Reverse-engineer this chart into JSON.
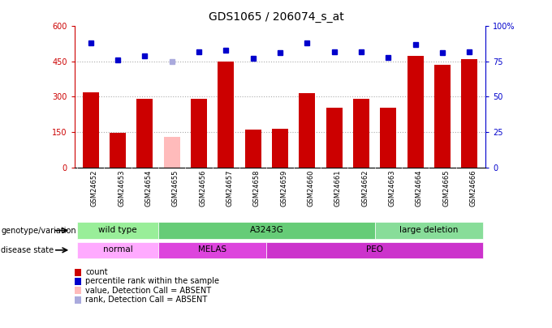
{
  "title": "GDS1065 / 206074_s_at",
  "samples": [
    "GSM24652",
    "GSM24653",
    "GSM24654",
    "GSM24655",
    "GSM24656",
    "GSM24657",
    "GSM24658",
    "GSM24659",
    "GSM24660",
    "GSM24661",
    "GSM24662",
    "GSM24663",
    "GSM24664",
    "GSM24665",
    "GSM24666"
  ],
  "counts": [
    320,
    148,
    292,
    130,
    290,
    450,
    160,
    165,
    315,
    255,
    290,
    255,
    475,
    435,
    460
  ],
  "count_absent": [
    false,
    false,
    false,
    true,
    false,
    false,
    false,
    false,
    false,
    false,
    false,
    false,
    false,
    false,
    false
  ],
  "percentile_ranks": [
    88,
    76,
    79,
    75,
    82,
    83,
    77,
    81,
    88,
    82,
    82,
    78,
    87,
    81,
    82
  ],
  "rank_absent": [
    false,
    false,
    false,
    true,
    false,
    false,
    false,
    false,
    false,
    false,
    false,
    false,
    false,
    false,
    false
  ],
  "bar_color_normal": "#cc0000",
  "bar_color_absent": "#ffbbbb",
  "dot_color_normal": "#0000cc",
  "dot_color_absent": "#aaaadd",
  "ylim_left": [
    0,
    600
  ],
  "ylim_right": [
    0,
    100
  ],
  "yticks_left": [
    0,
    150,
    300,
    450,
    600
  ],
  "yticks_right": [
    0,
    25,
    50,
    75,
    100
  ],
  "ytick_labels_left": [
    "0",
    "150",
    "300",
    "450",
    "600"
  ],
  "ytick_labels_right": [
    "0",
    "25",
    "50",
    "75",
    "100%"
  ],
  "grid_lines": [
    150,
    300,
    450
  ],
  "genotype_groups": [
    {
      "label": "wild type",
      "start": 0,
      "end": 3,
      "color": "#99ee99"
    },
    {
      "label": "A3243G",
      "start": 3,
      "end": 11,
      "color": "#66cc77"
    },
    {
      "label": "large deletion",
      "start": 11,
      "end": 15,
      "color": "#88dd99"
    }
  ],
  "disease_groups": [
    {
      "label": "normal",
      "start": 0,
      "end": 3,
      "color": "#ffaaff"
    },
    {
      "label": "MELAS",
      "start": 3,
      "end": 7,
      "color": "#dd44dd"
    },
    {
      "label": "PEO",
      "start": 7,
      "end": 15,
      "color": "#cc33cc"
    }
  ],
  "legend_items": [
    {
      "label": "count",
      "color": "#cc0000"
    },
    {
      "label": "percentile rank within the sample",
      "color": "#0000cc"
    },
    {
      "label": "value, Detection Call = ABSENT",
      "color": "#ffbbbb"
    },
    {
      "label": "rank, Detection Call = ABSENT",
      "color": "#aaaadd"
    }
  ],
  "sample_label_bg": "#cccccc",
  "background_color": "#ffffff",
  "left_axis_color": "#cc0000",
  "right_axis_color": "#0000cc"
}
